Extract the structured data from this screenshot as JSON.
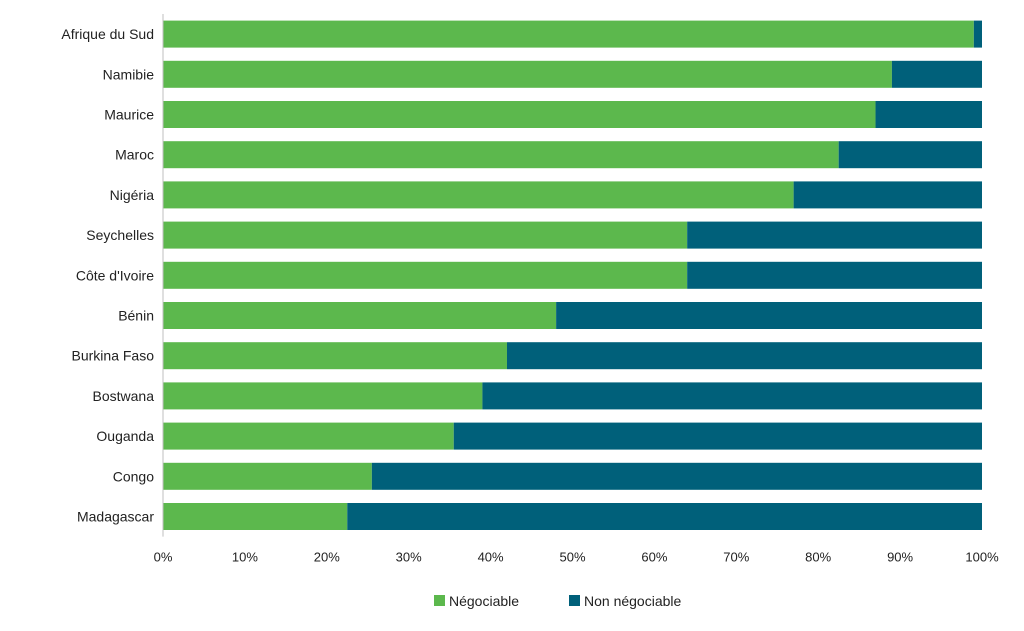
{
  "chart_data": {
    "type": "bar",
    "orientation": "horizontal",
    "stacked": "percent",
    "categories": [
      "Afrique du Sud",
      "Namibie",
      "Maurice",
      "Maroc",
      "Nigéria",
      "Seychelles",
      "Côte d'Ivoire",
      "Bénin",
      "Burkina Faso",
      "Bostwana",
      "Ouganda",
      "Congo",
      "Madagascar"
    ],
    "series": [
      {
        "name": "Négociable",
        "color": "#5cb84d",
        "values": [
          99,
          89,
          87,
          82.5,
          77,
          64,
          64,
          48,
          42,
          39,
          35.5,
          25.5,
          22.5
        ]
      },
      {
        "name": "Non négociable",
        "color": "#00607a",
        "values": [
          1,
          11,
          13,
          17.5,
          23,
          36,
          36,
          52,
          58,
          61,
          64.5,
          74.5,
          77.5
        ]
      }
    ],
    "xlim": [
      0,
      100
    ],
    "xticks": [
      "0%",
      "10%",
      "20%",
      "30%",
      "40%",
      "50%",
      "60%",
      "70%",
      "80%",
      "90%",
      "100%"
    ],
    "title": "",
    "xlabel": "",
    "ylabel": "",
    "grid": false,
    "legend": "bottom-center"
  }
}
